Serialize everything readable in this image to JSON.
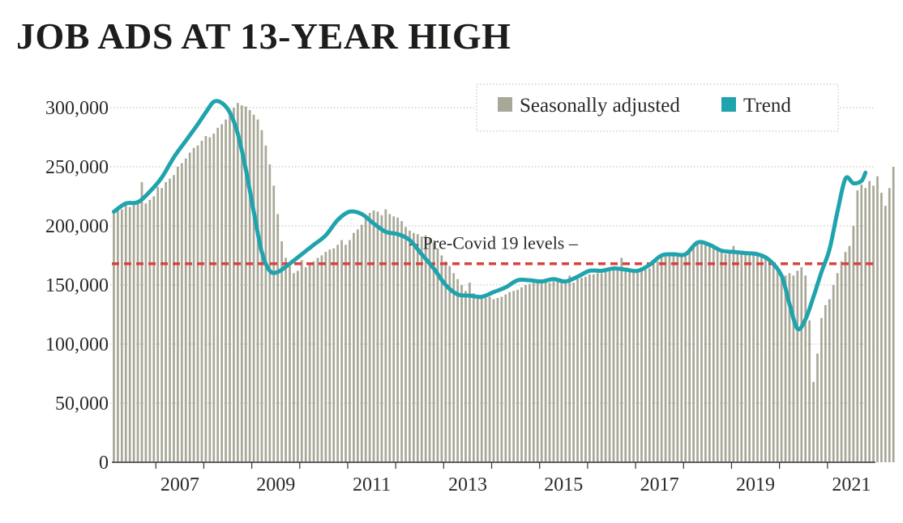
{
  "colors": {
    "bar": "#a9a898",
    "trend": "#1fa3ad",
    "reference": "#d9413f",
    "grid": "#b9b9b9",
    "text": "#2a2a2a"
  },
  "chart_data": {
    "type": "bar",
    "title": "JOB ADS AT 13-YEAR HIGH",
    "ylim": [
      0,
      320000
    ],
    "y_ticks": [
      {
        "value": 0,
        "label": "0"
      },
      {
        "value": 50000,
        "label": "50,000"
      },
      {
        "value": 100000,
        "label": "100,000"
      },
      {
        "value": 150000,
        "label": "150,000"
      },
      {
        "value": 200000,
        "label": "200,000"
      },
      {
        "value": 250000,
        "label": "250,000"
      },
      {
        "value": 300000,
        "label": "300,000"
      }
    ],
    "x_ticks": [
      "2007",
      "2009",
      "2011",
      "2013",
      "2015",
      "2017",
      "2019",
      "2021"
    ],
    "x_range": [
      "2006-02",
      "2021-12"
    ],
    "grid": "horizontal dotted",
    "legend_position": "top-right",
    "legend": [
      {
        "label": "Seasonally adjusted",
        "kind": "bar"
      },
      {
        "label": "Trend",
        "kind": "line"
      }
    ],
    "reference_line": {
      "value": 168000,
      "label": "– Pre-Covid 19 levels –"
    },
    "series": [
      {
        "name": "Seasonally adjusted",
        "kind": "bar",
        "start": "2006-02",
        "frequency": "monthly",
        "values": [
          212000,
          215000,
          214000,
          218000,
          216000,
          220000,
          222000,
          237000,
          219000,
          222000,
          225000,
          233000,
          232000,
          237000,
          240000,
          243000,
          250000,
          253000,
          257000,
          262000,
          266000,
          268000,
          272000,
          276000,
          275000,
          278000,
          283000,
          286000,
          290000,
          296000,
          300000,
          304000,
          302000,
          301000,
          298000,
          294000,
          290000,
          281000,
          268000,
          252000,
          234000,
          210000,
          187000,
          173000,
          166000,
          160000,
          162000,
          171000,
          165000,
          167000,
          170000,
          173000,
          175000,
          178000,
          180000,
          181000,
          184000,
          188000,
          184000,
          188000,
          194000,
          197000,
          201000,
          207000,
          211000,
          213000,
          212000,
          209000,
          214000,
          210000,
          208000,
          207000,
          204000,
          199000,
          196000,
          194000,
          193000,
          191000,
          192000,
          190000,
          186000,
          181000,
          175000,
          170000,
          166000,
          160000,
          155000,
          150000,
          145000,
          152000,
          143000,
          141000,
          140000,
          139000,
          140000,
          138000,
          139000,
          140000,
          142000,
          144000,
          145000,
          146000,
          148000,
          150000,
          151000,
          152000,
          153000,
          153000,
          154000,
          152000,
          153000,
          155000,
          154000,
          153000,
          158000,
          152000,
          155000,
          156000,
          157000,
          159000,
          159000,
          160000,
          160000,
          161000,
          162000,
          163000,
          164000,
          173000,
          163000,
          162000,
          161000,
          161000,
          162000,
          163000,
          164000,
          167000,
          170000,
          174000,
          175000,
          175000,
          176000,
          176000,
          176000,
          177000,
          180000,
          184000,
          186000,
          187000,
          185000,
          184000,
          182000,
          180000,
          178000,
          176000,
          179000,
          183000,
          178000,
          177000,
          176000,
          176000,
          175000,
          176000,
          176000,
          175000,
          171000,
          168000,
          164000,
          158000,
          158000,
          160000,
          158000,
          162000,
          165000,
          158000,
          120000,
          68000,
          92000,
          122000,
          133000,
          138000,
          150000,
          160000,
          170000,
          178000,
          183000,
          200000,
          230000,
          235000,
          232000,
          238000,
          234000,
          242000,
          228000,
          217000,
          232000,
          250000
        ]
      },
      {
        "name": "Trend",
        "kind": "line",
        "points": [
          [
            "2006-02",
            212000
          ],
          [
            "2006-05",
            219000
          ],
          [
            "2006-08",
            220000
          ],
          [
            "2006-11",
            229000
          ],
          [
            "2007-02",
            241000
          ],
          [
            "2007-05",
            258000
          ],
          [
            "2007-08",
            272000
          ],
          [
            "2007-11",
            286000
          ],
          [
            "2008-01",
            296000
          ],
          [
            "2008-03",
            305000
          ],
          [
            "2008-05",
            304000
          ],
          [
            "2008-07",
            296000
          ],
          [
            "2008-09",
            278000
          ],
          [
            "2008-11",
            248000
          ],
          [
            "2009-01",
            212000
          ],
          [
            "2009-03",
            178000
          ],
          [
            "2009-05",
            162000
          ],
          [
            "2009-07",
            161000
          ],
          [
            "2009-10",
            168000
          ],
          [
            "2010-01",
            176000
          ],
          [
            "2010-04",
            184000
          ],
          [
            "2010-07",
            192000
          ],
          [
            "2010-10",
            205000
          ],
          [
            "2011-01",
            212000
          ],
          [
            "2011-04",
            210000
          ],
          [
            "2011-07",
            202000
          ],
          [
            "2011-10",
            195000
          ],
          [
            "2012-01",
            193000
          ],
          [
            "2012-04",
            188000
          ],
          [
            "2012-07",
            176000
          ],
          [
            "2012-10",
            164000
          ],
          [
            "2013-01",
            150000
          ],
          [
            "2013-04",
            142000
          ],
          [
            "2013-07",
            141000
          ],
          [
            "2013-10",
            140000
          ],
          [
            "2014-01",
            144000
          ],
          [
            "2014-04",
            148000
          ],
          [
            "2014-07",
            154000
          ],
          [
            "2014-10",
            154000
          ],
          [
            "2015-01",
            153000
          ],
          [
            "2015-04",
            155000
          ],
          [
            "2015-07",
            153000
          ],
          [
            "2015-10",
            157000
          ],
          [
            "2016-01",
            162000
          ],
          [
            "2016-04",
            162000
          ],
          [
            "2016-07",
            164000
          ],
          [
            "2016-10",
            163000
          ],
          [
            "2017-01",
            162000
          ],
          [
            "2017-04",
            167000
          ],
          [
            "2017-07",
            175000
          ],
          [
            "2017-10",
            176000
          ],
          [
            "2018-01",
            176000
          ],
          [
            "2018-04",
            186000
          ],
          [
            "2018-07",
            184000
          ],
          [
            "2018-10",
            179000
          ],
          [
            "2019-01",
            178000
          ],
          [
            "2019-04",
            177000
          ],
          [
            "2019-07",
            176000
          ],
          [
            "2019-10",
            171000
          ],
          [
            "2020-01",
            158000
          ],
          [
            "2020-03",
            134000
          ],
          [
            "2020-05",
            113000
          ],
          [
            "2020-07",
            121000
          ],
          [
            "2020-09",
            140000
          ],
          [
            "2020-11",
            161000
          ],
          [
            "2021-01",
            180000
          ],
          [
            "2021-03",
            212000
          ],
          [
            "2021-05",
            240000
          ],
          [
            "2021-07",
            236000
          ],
          [
            "2021-09",
            238000
          ],
          [
            "2021-10",
            245000
          ]
        ]
      }
    ]
  }
}
